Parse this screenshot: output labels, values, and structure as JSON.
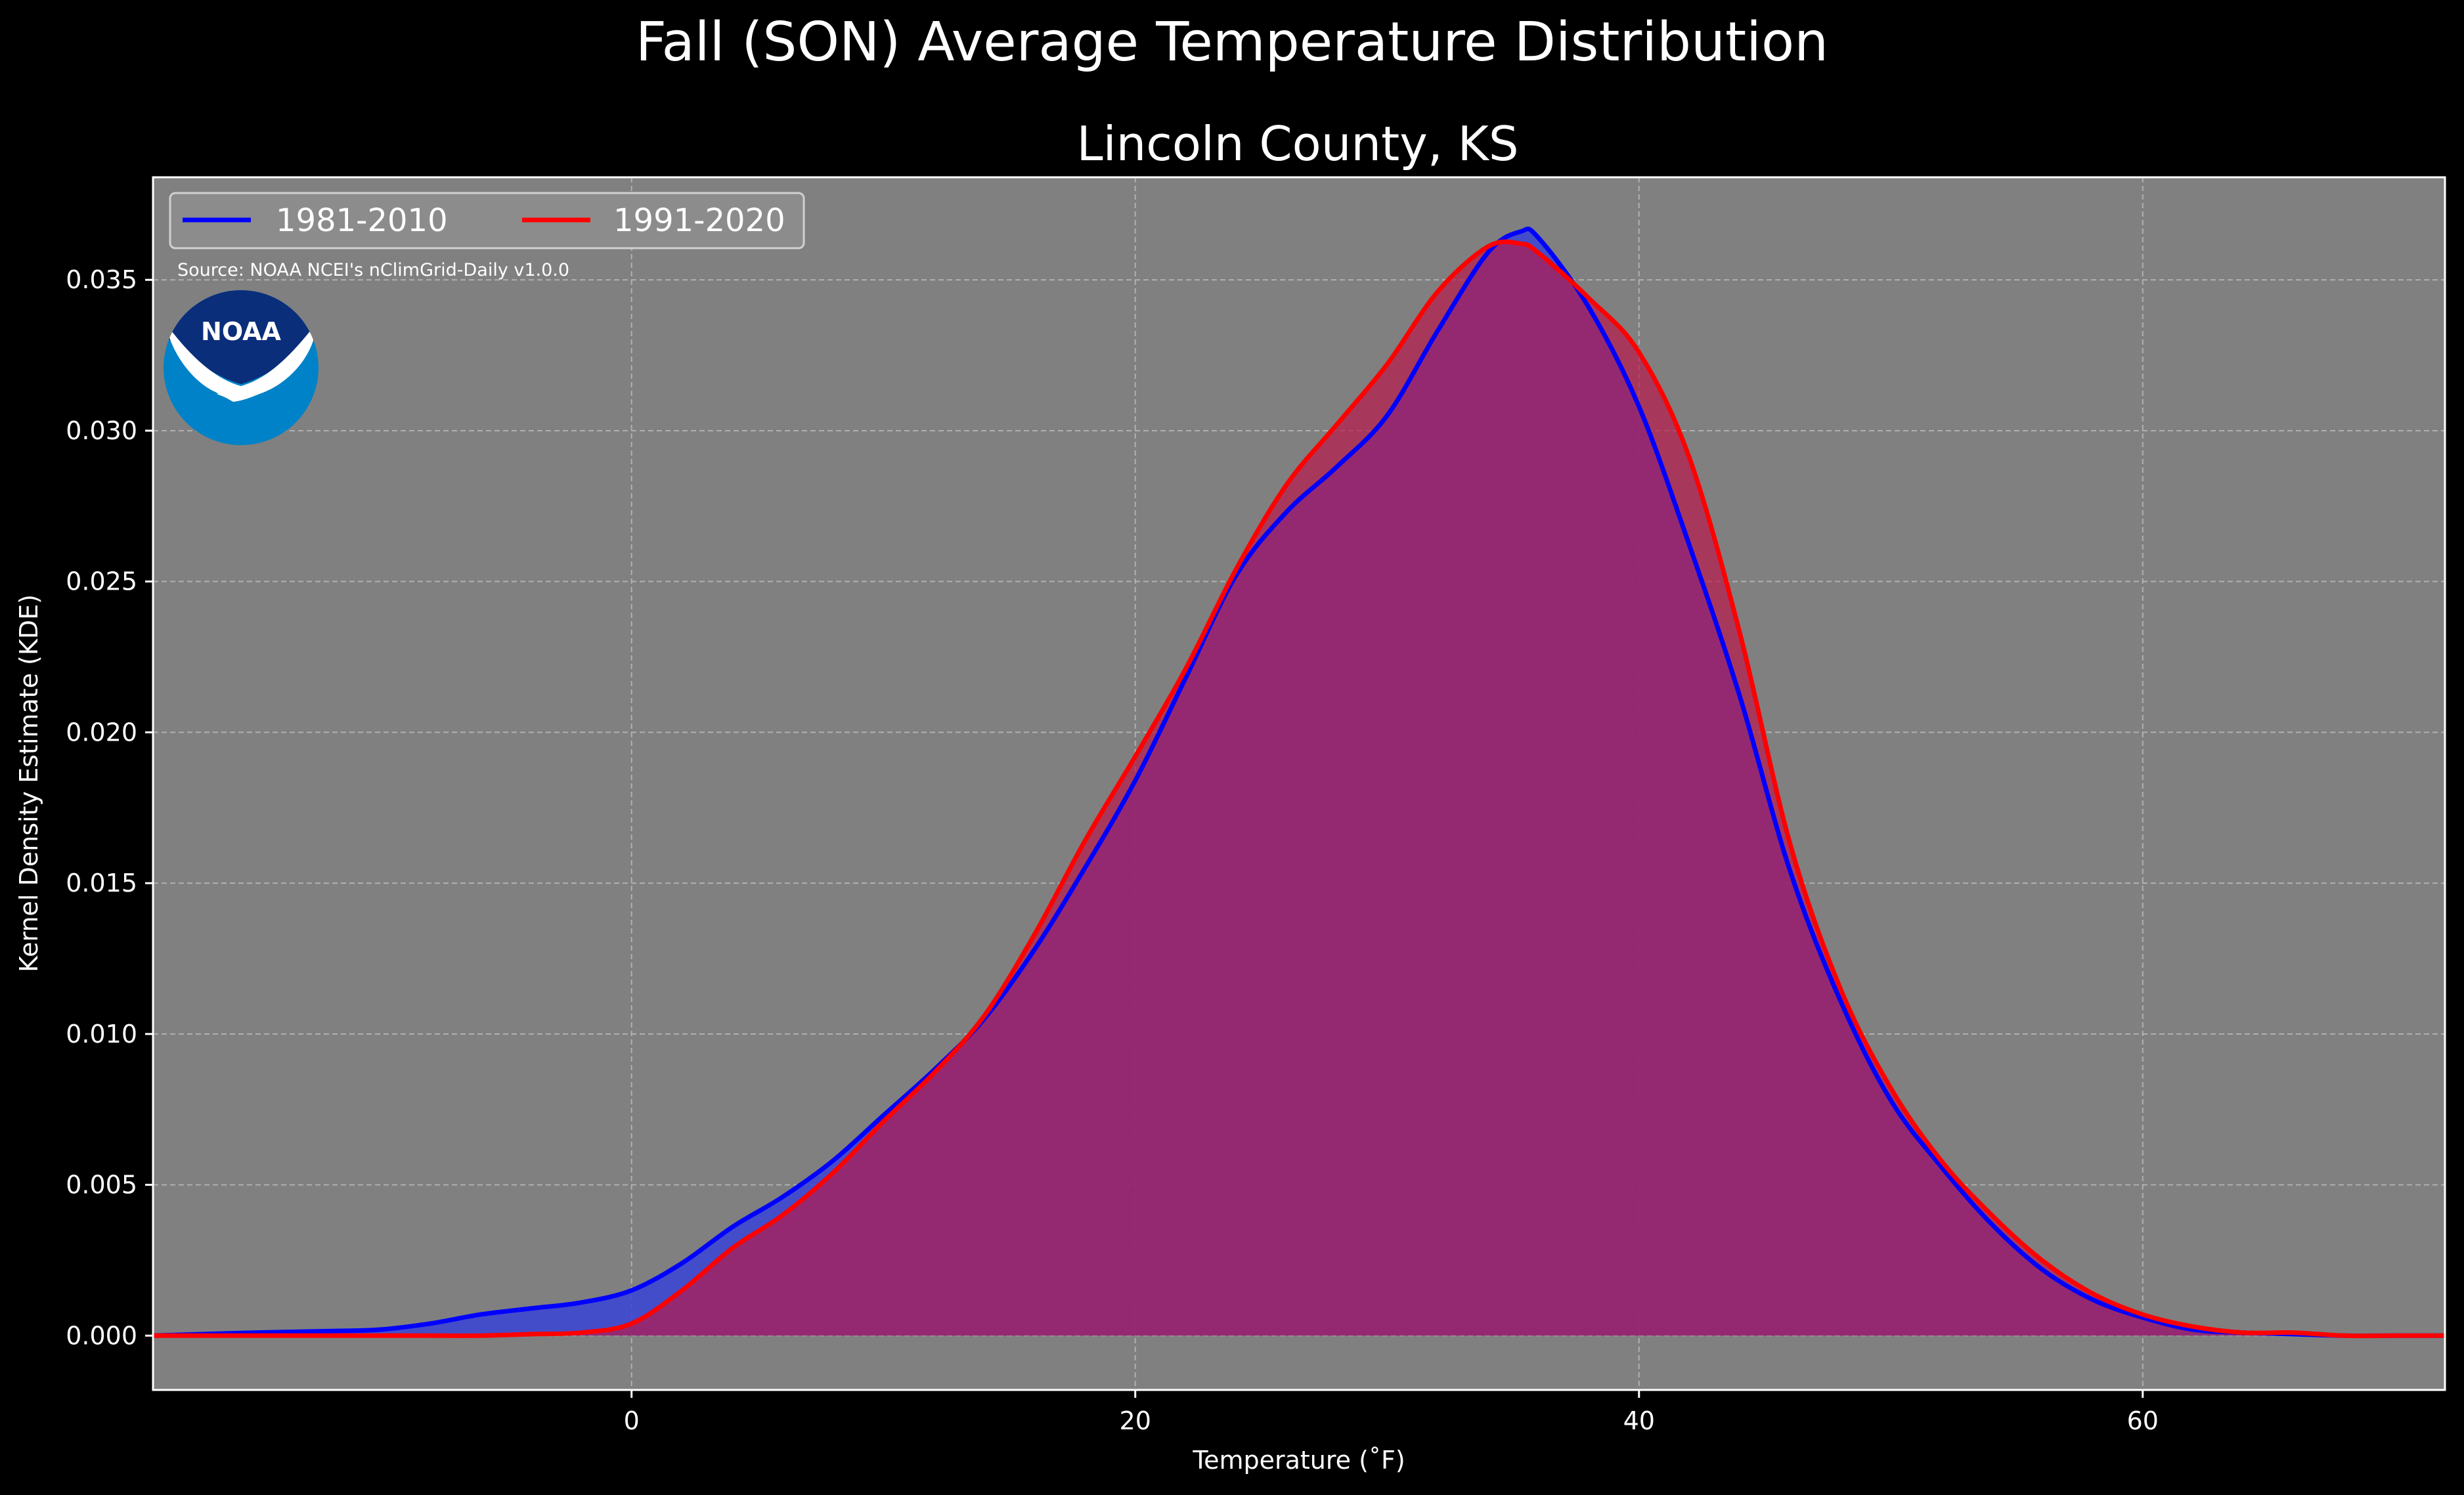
{
  "title": "Fall (SON) Average Temperature Distribution",
  "subtitle": "Lincoln County, KS",
  "source": "Source: NOAA NCEI's nClimGrid-Daily v1.0.0",
  "logo": {
    "name": "noaa-logo",
    "text": "NOAA",
    "colors": {
      "dark": "#0a2e7a",
      "light": "#0082c8",
      "white": "#ffffff"
    }
  },
  "colors": {
    "background": "#000000",
    "plot_bg": "#808080",
    "grid": "#bdbdbd"
  },
  "chart_data": {
    "type": "area",
    "xlabel": "Temperature ($^\\circ$F)",
    "xlabel_display": "Temperature (˚F)",
    "ylabel": "Kernel Density Estimate (KDE)",
    "xlim": [
      -19,
      72
    ],
    "ylim": [
      -0.0018,
      0.0384
    ],
    "xticks": [
      0,
      20,
      40,
      60
    ],
    "yticks": [
      0.0,
      0.005,
      0.01,
      0.015,
      0.02,
      0.025,
      0.03,
      0.035
    ],
    "ytick_labels": [
      "0.000",
      "0.005",
      "0.010",
      "0.015",
      "0.020",
      "0.025",
      "0.030",
      "0.035"
    ],
    "grid": true,
    "legend": "upper-left",
    "series": [
      {
        "name": "1981-2010",
        "color": "#0000ff",
        "fill": "#3a44d6",
        "x": [
          -19,
          -15,
          -12,
          -10,
          -8,
          -6,
          -4,
          -2,
          0,
          2,
          4,
          6,
          8,
          10,
          12,
          14,
          16,
          18,
          20,
          22,
          24,
          26,
          28,
          30,
          32,
          34,
          35.3,
          36,
          38,
          40,
          42,
          44,
          46,
          48,
          50,
          52,
          54,
          56,
          58,
          60,
          62,
          64,
          66,
          68,
          70,
          72
        ],
        "y": [
          0.0,
          0.0001,
          0.00015,
          0.0002,
          0.0004,
          0.0007,
          0.0009,
          0.0011,
          0.0015,
          0.0024,
          0.0036,
          0.0046,
          0.0058,
          0.0073,
          0.0088,
          0.0105,
          0.0128,
          0.0155,
          0.0184,
          0.0218,
          0.0252,
          0.0273,
          0.0288,
          0.0305,
          0.0333,
          0.0359,
          0.0366,
          0.0364,
          0.0341,
          0.0308,
          0.0262,
          0.0212,
          0.0154,
          0.0111,
          0.0078,
          0.0056,
          0.0037,
          0.0022,
          0.0012,
          0.0006,
          0.0002,
          0.0001,
          5e-05,
          0.0,
          0.0,
          0.0
        ]
      },
      {
        "name": "1991-2020",
        "color": "#ff0000",
        "fill": "#b81a4c",
        "x": [
          -19,
          -15,
          -12,
          -10,
          -8,
          -6,
          -4,
          -2,
          0,
          2,
          4,
          6,
          8,
          10,
          12,
          14,
          16,
          18,
          20,
          22,
          24,
          26,
          28,
          30,
          32,
          34,
          35.3,
          36,
          38,
          40,
          42,
          44,
          46,
          48,
          50,
          52,
          54,
          56,
          58,
          60,
          62,
          64,
          66,
          68,
          70,
          72
        ],
        "y": [
          0.0,
          0.0,
          0.0,
          0.0,
          0.0,
          0.0,
          5e-05,
          0.0001,
          0.0004,
          0.0015,
          0.0029,
          0.004,
          0.0054,
          0.0071,
          0.0087,
          0.0106,
          0.0133,
          0.0164,
          0.0192,
          0.0221,
          0.0254,
          0.0282,
          0.0302,
          0.0322,
          0.0346,
          0.0361,
          0.0362,
          0.0359,
          0.0344,
          0.0326,
          0.0291,
          0.0233,
          0.0163,
          0.0115,
          0.0082,
          0.0058,
          0.004,
          0.0025,
          0.0014,
          0.0007,
          0.0003,
          0.0001,
          0.0001,
          0.0,
          0.0,
          0.0
        ]
      }
    ]
  }
}
